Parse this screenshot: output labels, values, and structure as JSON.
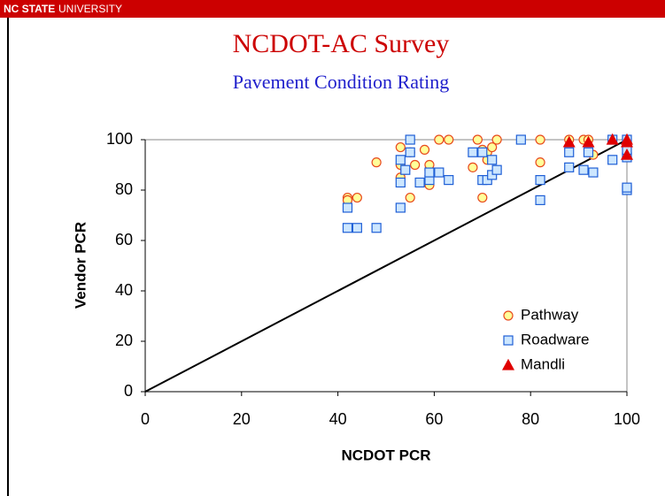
{
  "header": {
    "brand_bold": "NC STATE",
    "brand": "UNIVERSITY"
  },
  "chart_data": {
    "type": "scatter",
    "title": "NCDOT-AC Survey",
    "subtitle": "Pavement Condition Rating",
    "x_label": "NCDOT PCR",
    "y_label": "Vendor PCR",
    "xlim": [
      0,
      100
    ],
    "ylim": [
      0,
      100
    ],
    "xticks": [
      0,
      20,
      40,
      60,
      80,
      100
    ],
    "yticks": [
      0,
      20,
      40,
      60,
      80,
      100
    ],
    "reference_line": true,
    "legend": "lower right",
    "series": [
      {
        "name": "Pathway",
        "marker": "circle",
        "color": "#ffff99",
        "edge_color": "#e8491d",
        "x": [
          42,
          42,
          44,
          48,
          53,
          53,
          53,
          54,
          55,
          55,
          56,
          58,
          59,
          59,
          59,
          61,
          63,
          68,
          69,
          70,
          70,
          71,
          71,
          72,
          73,
          82,
          82,
          88,
          91,
          92,
          93,
          100,
          100
        ],
        "values": [
          77,
          76,
          77,
          91,
          97,
          90,
          85,
          88,
          95,
          77,
          90,
          96,
          82,
          88,
          90,
          100,
          100,
          89,
          100,
          77,
          96,
          95,
          92,
          97,
          100,
          100,
          91,
          100,
          100,
          100,
          94,
          100,
          99
        ]
      },
      {
        "name": "Roadware",
        "marker": "square",
        "color": "#cce6ff",
        "edge_color": "#1f5fd6",
        "x": [
          42,
          42,
          44,
          48,
          53,
          53,
          53,
          54,
          55,
          55,
          57,
          59,
          59,
          61,
          63,
          68,
          70,
          70,
          71,
          72,
          72,
          73,
          78,
          82,
          82,
          88,
          88,
          91,
          92,
          93,
          97,
          97,
          100,
          100,
          100,
          100,
          100
        ],
        "values": [
          73,
          65,
          65,
          65,
          92,
          73,
          83,
          88,
          95,
          100,
          83,
          84,
          87,
          87,
          84,
          95,
          84,
          95,
          84,
          92,
          86,
          88,
          100,
          84,
          76,
          89,
          95,
          88,
          95,
          87,
          92,
          100,
          100,
          93,
          96,
          80,
          81
        ]
      },
      {
        "name": "Mandli",
        "marker": "triangle",
        "color": "#e00000",
        "edge_color": "#e00000",
        "x": [
          88,
          92,
          97,
          100,
          100,
          100
        ],
        "values": [
          99,
          99,
          100,
          100,
          94,
          99
        ]
      }
    ]
  }
}
